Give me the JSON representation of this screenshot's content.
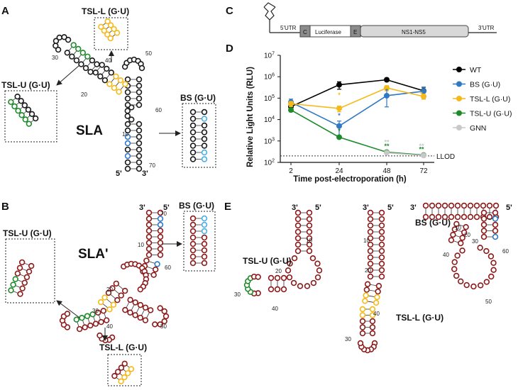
{
  "panels": {
    "a": {
      "letter": "A",
      "structure_label": "SLA",
      "box_tsl_l": "TSL-L (G·U)",
      "box_tsl_u": "TSL-U (G·U)",
      "box_bs": "BS (G·U)",
      "end5": "5'",
      "end3": "3'",
      "positions": [
        "10",
        "20",
        "30",
        "40",
        "50",
        "60",
        "70"
      ]
    },
    "b": {
      "letter": "B",
      "structure_label": "SLA'",
      "box_bs": "BS (G·U)",
      "box_tsl_u": "TSL-U (G·U)",
      "box_tsl_l": "TSL-L (G·U)",
      "end5": "5'",
      "end3": "3'",
      "positions": [
        "70",
        "10",
        "60",
        "20",
        "30",
        "40",
        "50"
      ]
    },
    "c": {
      "letter": "C",
      "utr5": "5'UTR",
      "seg_c": "C",
      "seg_luc": "Luciferase",
      "seg_e": "E",
      "seg_ns": "NS1-NS5",
      "utr3": "3'UTR"
    },
    "d": {
      "letter": "D"
    },
    "e": {
      "letter": "E",
      "label_tsl_u": "TSL-U (G·U)",
      "label_tsl_l": "TSL-L (G·U)",
      "label_bs": "BS (G·U)",
      "end5": "5'",
      "end3": "3'",
      "positions_u": [
        "10",
        "20",
        "30",
        "40"
      ],
      "positions_l": [
        "10",
        "20",
        "30",
        "40"
      ],
      "positions_bs": [
        "10",
        "20",
        "30",
        "40",
        "50",
        "60"
      ]
    }
  },
  "colors": {
    "wt": "#000000",
    "bs": "#2f78c4",
    "tsl_l": "#f6b91a",
    "tsl_u": "#1f8a2a",
    "gnn": "#c8c8c8",
    "nucleotide_red": "#8b1a1a",
    "nucleotide_black": "#1a1a1a",
    "light_blue_sub": "#4aaee8"
  },
  "chart_data": {
    "type": "line",
    "ylabel": "Relative Light Units (RLU)",
    "xlabel": "Time post-electroporation (h)",
    "x": [
      2,
      24,
      48,
      72
    ],
    "xticks": [
      "2",
      "24",
      "48",
      "72"
    ],
    "yscale": "log",
    "ylim": [
      100,
      10000000
    ],
    "yticks_exp": [
      2,
      3,
      4,
      5,
      6,
      7
    ],
    "ytick_base": "10",
    "lod_value": 200,
    "lod_label": "LLOD",
    "legend_position": "right",
    "series": [
      {
        "name": "WT",
        "key": "wt",
        "values": [
          40000,
          420000,
          720000,
          220000
        ],
        "errors": [
          12000,
          160000,
          120000,
          100000
        ]
      },
      {
        "name": "BS (G·U)",
        "key": "bs",
        "values": [
          65000,
          5000,
          130000,
          210000
        ],
        "errors": [
          25000,
          3500,
          120000,
          120000
        ]
      },
      {
        "name": "TSL-L (G·U)",
        "key": "tsl_l",
        "values": [
          55000,
          33000,
          300000,
          120000
        ],
        "errors": [
          15000,
          10000,
          80000,
          30000
        ]
      },
      {
        "name": "TSL-U (G·U)",
        "key": "tsl_u",
        "values": [
          28000,
          1500,
          300,
          220
        ],
        "errors": [
          5000,
          200,
          50,
          30
        ]
      },
      {
        "name": "GNN",
        "key": "gnn",
        "values": [
          null,
          null,
          280,
          210
        ],
        "errors": [
          null,
          null,
          40,
          30
        ]
      }
    ],
    "significance": [
      {
        "x": 24,
        "y": 110000,
        "text": "*",
        "key": "tsl_l"
      },
      {
        "x": 24,
        "y": 12000,
        "text": "*",
        "key": "bs"
      },
      {
        "x": 24,
        "y": 2400,
        "text": "*",
        "key": "tsl_u"
      },
      {
        "x": 48,
        "y": 170000,
        "text": "*",
        "key": "bs"
      },
      {
        "x": 72,
        "y": 120000,
        "text": "*",
        "key": "tsl_l"
      },
      {
        "x": 48,
        "y": 700,
        "text": "**",
        "key": "gnn"
      },
      {
        "x": 48,
        "y": 460,
        "text": "**",
        "key": "tsl_u"
      },
      {
        "x": 72,
        "y": 460,
        "text": "**",
        "key": "gnn"
      },
      {
        "x": 72,
        "y": 320,
        "text": "**",
        "key": "tsl_u"
      }
    ]
  }
}
